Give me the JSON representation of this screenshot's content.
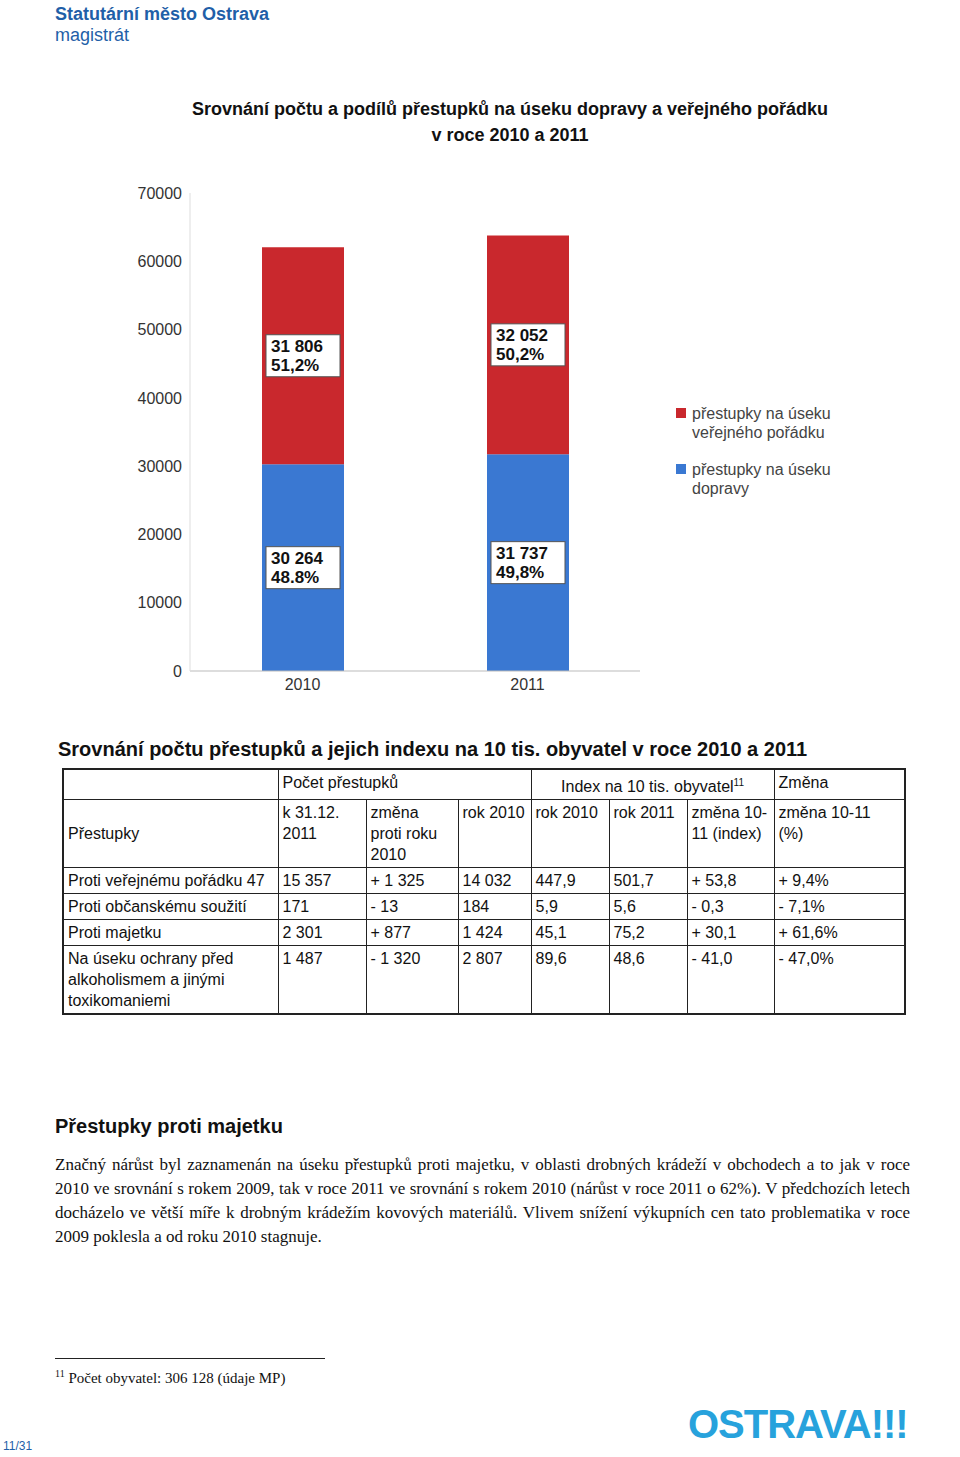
{
  "header": {
    "organization": "Statutární město Ostrava",
    "department": "magistrát"
  },
  "chart_data": {
    "type": "bar",
    "title": "Srovnání počtu a podílů přestupků na úseku dopravy a veřejného pořádku",
    "subtitle": "v roce 2010 a 2011",
    "stacked": true,
    "data_labels": true,
    "legend": "right",
    "grid": false,
    "categories": [
      "2010",
      "2011"
    ],
    "series": [
      {
        "name": "přestupky na úseku dopravy",
        "color": "#3a78d2",
        "values": [
          30264,
          31737
        ],
        "value_labels": [
          "30 264",
          "31 737"
        ],
        "shares": [
          48.8,
          49.8
        ],
        "share_labels": [
          "48.8%",
          "49,8%"
        ]
      },
      {
        "name": "přestupky na úseku veřejného pořádku",
        "color": "#c9282d",
        "values": [
          31806,
          32052
        ],
        "value_labels": [
          "31 806",
          "32 052"
        ],
        "shares": [
          51.2,
          50.2
        ],
        "share_labels": [
          "51,2%",
          "50,2%"
        ]
      }
    ],
    "ylim": [
      0,
      70000
    ],
    "yticks": [
      0,
      10000,
      20000,
      30000,
      40000,
      50000,
      60000,
      70000
    ]
  },
  "table": {
    "title": "Srovnání počtu přestupků a jejich indexu na 10 tis. obyvatel v roce 2010 a 2011",
    "header_groups": [
      "Počet přestupků",
      "Index na 10 tis. obyvatel",
      "Změna"
    ],
    "footnote_ref": "11",
    "header": [
      "Přestupky",
      "k 31.12. 2011",
      "změna proti roku 2010",
      "rok 2010",
      "rok 2010",
      "rok 2011",
      "změna 10-11 (index)",
      "změna 10-11 (%)"
    ],
    "rows": [
      [
        "Proti veřejnému pořádku 47",
        "15 357",
        "+ 1 325",
        "14 032",
        "447,9",
        "501,7",
        "+ 53,8",
        "+ 9,4%"
      ],
      [
        "Proti občanskému soužití",
        "171",
        "- 13",
        "184",
        "5,9",
        "5,6",
        "- 0,3",
        "- 7,1%"
      ],
      [
        "Proti majetku",
        "2 301",
        "+ 877",
        "1 424",
        "45,1",
        "75,2",
        "+ 30,1",
        "+ 61,6%"
      ],
      [
        "Na úseku ochrany před alkoholismem a jinými toxikomaniemi",
        "1 487",
        "- 1 320",
        "2 807",
        "89,6",
        "48,6",
        "- 41,0",
        "- 47,0%"
      ]
    ]
  },
  "section": {
    "heading": "Přestupky proti majetku",
    "paragraph": "Značný nárůst byl zaznamenán na úseku přestupků proti majetku, v oblasti drobných krádeží v obchodech a to jak v roce 2010 ve srovnání s rokem 2009, tak v roce 2011 ve srovnání s rokem 2010 (nárůst v roce 2011 o 62%). V předchozích letech docházelo ve větší míře k drobným krádežím kovových materiálů. Vlivem snížení výkupních cen tato problematika v roce 2009 poklesla a od roku 2010 stagnuje."
  },
  "footnote": {
    "mark": "11",
    "text": "Počet obyvatel: 306 128 (údaje MP)"
  },
  "page": "11/31",
  "logo": "OSTRAVA!!!"
}
